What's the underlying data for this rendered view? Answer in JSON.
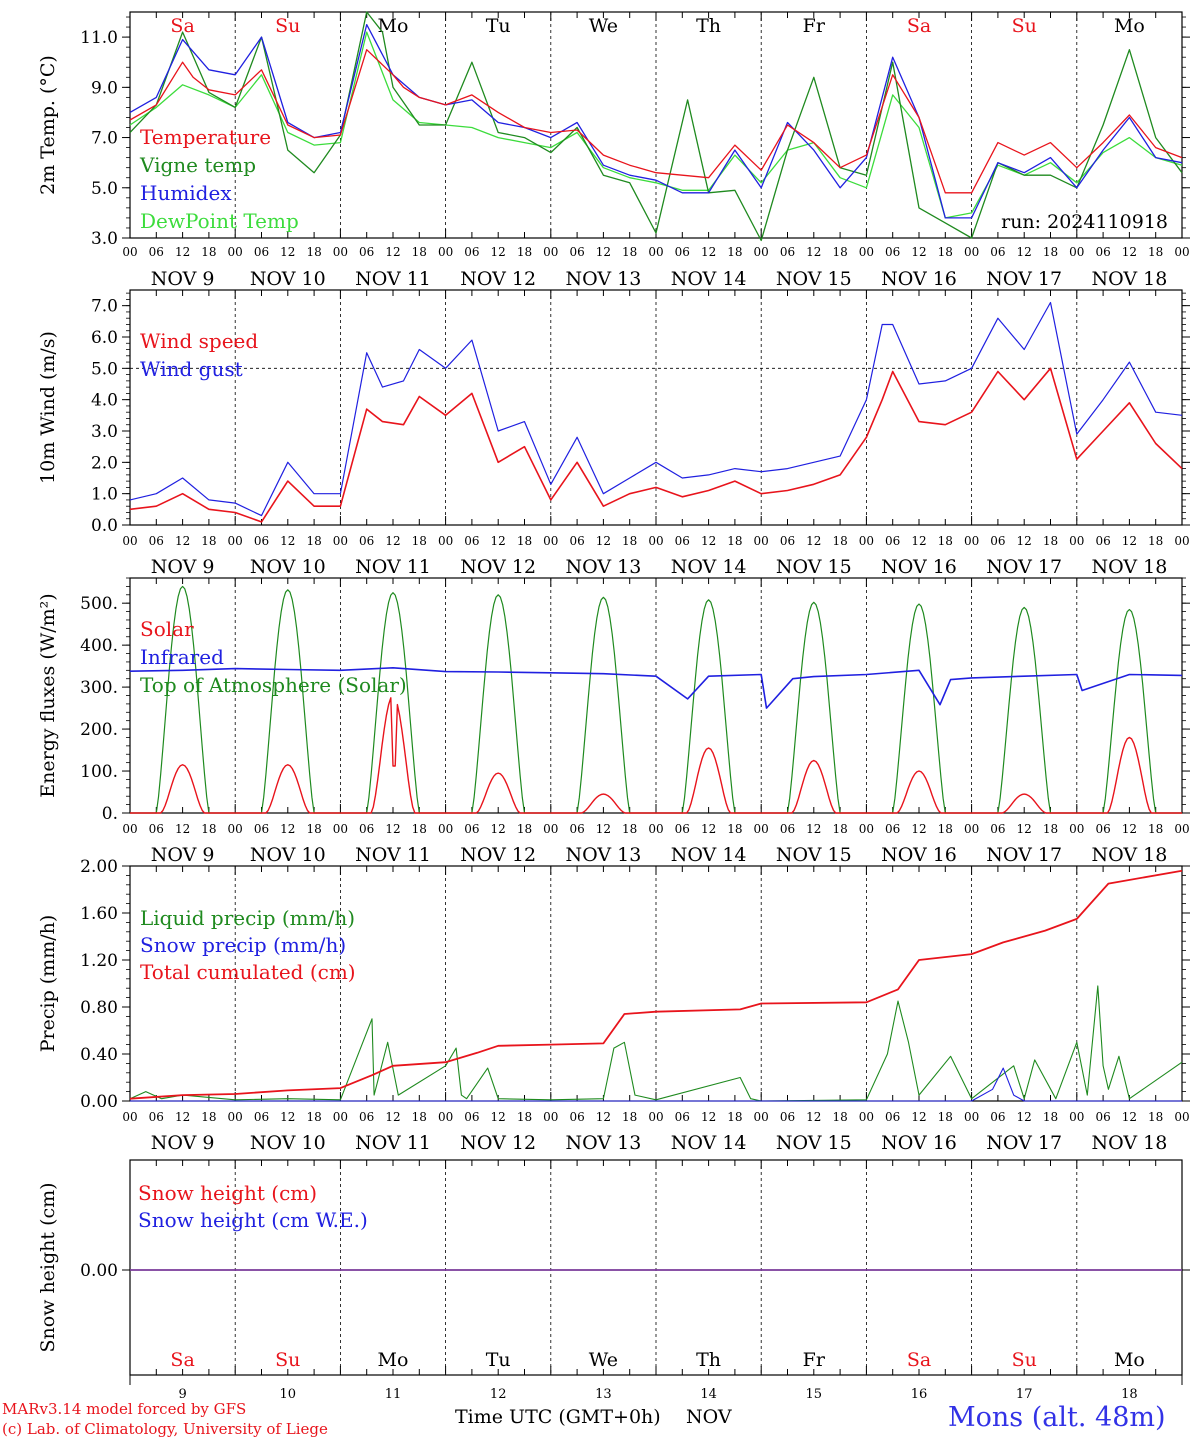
{
  "colors": {
    "red": "#e8141c",
    "darkgreen": "#1f8a1f",
    "blue": "#2020e0",
    "lightgreen": "#3cdc3c",
    "purple": "#7a3a9a",
    "grid": "#333333"
  },
  "x_axis": {
    "hours": [
      "00",
      "06",
      "12",
      "18"
    ],
    "last_hour": "00",
    "dates": [
      "NOV  9",
      "NOV 10",
      "NOV 11",
      "NOV 12",
      "NOV 13",
      "NOV 14",
      "NOV 15",
      "NOV 16",
      "NOV 17",
      "NOV 18"
    ],
    "day_names": [
      "Sa",
      "Su",
      "Mo",
      "Tu",
      "We",
      "Th",
      "Fr",
      "Sa",
      "Su",
      "Mo"
    ],
    "weekend": [
      true,
      true,
      false,
      false,
      false,
      false,
      false,
      true,
      true,
      false
    ],
    "day_numbers": [
      "9",
      "10",
      "11",
      "12",
      "13",
      "14",
      "15",
      "16",
      "17",
      "18"
    ],
    "title": "Time UTC (GMT+0h)",
    "month": "NOV"
  },
  "footer": {
    "credit1": "MARv3.14 model forced by GFS",
    "credit2": "(c) Lab. of Climatology, University of Liege",
    "station": "Mons (alt. 48m)"
  },
  "chart_data": [
    {
      "type": "line",
      "ylabel": "2m Temp. (°C)",
      "ylim": [
        3.0,
        12.0
      ],
      "yticks": [
        "3.0",
        "5.0",
        "7.0",
        "9.0",
        "11.0"
      ],
      "annotation": "run: 2024110918",
      "x_unit": "day index (0 = NOV 9 00 UTC)",
      "series": [
        {
          "name": "Temperature",
          "color": "red",
          "x": [
            0,
            0.25,
            0.5,
            0.6,
            0.75,
            1,
            1.25,
            1.5,
            1.75,
            2,
            2.25,
            2.5,
            2.6,
            2.75,
            3,
            3.25,
            3.5,
            3.75,
            4,
            4.25,
            4.5,
            4.75,
            5,
            5.25,
            5.5,
            5.75,
            6,
            6.25,
            6.5,
            6.75,
            7,
            7.25,
            7.5,
            7.75,
            8,
            8.25,
            8.5,
            8.75,
            9,
            9.25,
            9.5,
            9.75,
            10
          ],
          "values": [
            7.7,
            8.3,
            10.0,
            9.4,
            8.9,
            8.7,
            9.7,
            7.5,
            7.0,
            7.1,
            10.5,
            9.5,
            9.0,
            8.6,
            8.3,
            8.7,
            8.0,
            7.4,
            7.2,
            7.3,
            6.3,
            5.9,
            5.6,
            5.5,
            5.4,
            6.7,
            5.7,
            7.5,
            6.8,
            5.8,
            6.3,
            9.5,
            7.8,
            4.8,
            4.8,
            6.8,
            6.3,
            6.8,
            5.8,
            6.8,
            7.9,
            6.6,
            6.2
          ]
        },
        {
          "name": "Vigne temp",
          "color": "darkgreen",
          "x": [
            0,
            0.25,
            0.5,
            0.75,
            1,
            1.25,
            1.5,
            1.75,
            2,
            2.25,
            2.4,
            2.5,
            2.75,
            3,
            3.25,
            3.5,
            3.75,
            4,
            4.25,
            4.5,
            4.75,
            5,
            5.3,
            5.5,
            5.75,
            6,
            6.25,
            6.5,
            6.75,
            7,
            7.25,
            7.5,
            7.75,
            8,
            8.25,
            8.5,
            8.75,
            9,
            9.25,
            9.5,
            9.75,
            10
          ],
          "values": [
            7.2,
            8.3,
            11.2,
            8.8,
            8.2,
            11.0,
            6.5,
            5.6,
            7.1,
            12.0,
            11.2,
            9.0,
            7.5,
            7.5,
            10.0,
            7.2,
            7.0,
            6.4,
            7.4,
            5.5,
            5.2,
            3.2,
            8.5,
            4.8,
            4.9,
            2.9,
            6.5,
            9.4,
            5.8,
            5.5,
            10.0,
            4.2,
            3.6,
            3.0,
            6.0,
            5.5,
            5.5,
            5.0,
            7.5,
            10.5,
            7.0,
            5.6
          ]
        },
        {
          "name": "Humidex",
          "color": "blue",
          "x": [
            0,
            0.25,
            0.5,
            0.75,
            1,
            1.25,
            1.5,
            1.75,
            2,
            2.25,
            2.5,
            2.75,
            3,
            3.25,
            3.5,
            3.75,
            4,
            4.25,
            4.5,
            4.75,
            5,
            5.25,
            5.5,
            5.75,
            6,
            6.25,
            6.5,
            6.75,
            7,
            7.25,
            7.5,
            7.75,
            8,
            8.25,
            8.5,
            8.75,
            9,
            9.25,
            9.5,
            9.75,
            10
          ],
          "values": [
            8.0,
            8.6,
            10.9,
            9.7,
            9.5,
            11.0,
            7.6,
            7.0,
            7.2,
            11.5,
            9.5,
            8.6,
            8.3,
            8.5,
            7.6,
            7.4,
            7.0,
            7.6,
            5.9,
            5.5,
            5.3,
            4.8,
            4.8,
            6.5,
            5.0,
            7.6,
            6.5,
            5.0,
            6.2,
            10.2,
            7.8,
            3.8,
            3.8,
            6.0,
            5.6,
            6.2,
            5.0,
            6.5,
            7.8,
            6.2,
            6.0
          ]
        },
        {
          "name": "DewPoint Temp",
          "color": "lightgreen",
          "x": [
            0,
            0.25,
            0.5,
            0.75,
            1,
            1.25,
            1.5,
            1.75,
            2,
            2.25,
            2.5,
            2.75,
            3,
            3.25,
            3.5,
            3.75,
            4,
            4.25,
            4.5,
            4.75,
            5,
            5.25,
            5.5,
            5.75,
            6,
            6.25,
            6.5,
            6.75,
            7,
            7.25,
            7.5,
            7.75,
            8,
            8.25,
            8.5,
            8.75,
            9,
            9.25,
            9.5,
            9.75,
            10
          ],
          "values": [
            7.5,
            8.2,
            9.1,
            8.7,
            8.2,
            9.5,
            7.2,
            6.7,
            6.8,
            11.2,
            8.5,
            7.6,
            7.5,
            7.4,
            7.0,
            6.8,
            6.6,
            7.2,
            5.8,
            5.4,
            5.2,
            4.9,
            4.9,
            6.3,
            5.2,
            6.5,
            6.8,
            5.4,
            5.0,
            8.7,
            7.4,
            3.8,
            4.0,
            5.9,
            5.5,
            6.0,
            5.2,
            6.4,
            7.0,
            6.2,
            5.9
          ]
        }
      ]
    },
    {
      "type": "line",
      "ylabel": "10m Wind (m/s)",
      "ylim": [
        0.0,
        7.5
      ],
      "yticks": [
        "0.0",
        "1.0",
        "2.0",
        "3.0",
        "4.0",
        "5.0",
        "6.0",
        "7.0"
      ],
      "reference_line": 5.0,
      "series": [
        {
          "name": "Wind speed",
          "color": "red",
          "x": [
            0,
            0.25,
            0.5,
            0.75,
            1,
            1.25,
            1.5,
            1.75,
            2,
            2.25,
            2.4,
            2.6,
            2.75,
            3,
            3.25,
            3.5,
            3.75,
            4,
            4.25,
            4.5,
            4.75,
            5,
            5.25,
            5.5,
            5.75,
            6,
            6.25,
            6.5,
            6.75,
            7,
            7.15,
            7.25,
            7.5,
            7.75,
            8,
            8.25,
            8.5,
            8.75,
            9,
            9.25,
            9.5,
            9.75,
            10
          ],
          "values": [
            0.5,
            0.6,
            1.0,
            0.5,
            0.4,
            0.1,
            1.4,
            0.6,
            0.6,
            3.7,
            3.3,
            3.2,
            4.1,
            3.5,
            4.2,
            2.0,
            2.5,
            0.8,
            2.0,
            0.6,
            1.0,
            1.2,
            0.9,
            1.1,
            1.4,
            1.0,
            1.1,
            1.3,
            1.6,
            2.8,
            4.0,
            4.9,
            3.3,
            3.2,
            3.6,
            4.9,
            4.0,
            5.0,
            2.1,
            3.0,
            3.9,
            2.6,
            1.8
          ]
        },
        {
          "name": "Wind gust",
          "color": "blue",
          "x": [
            0,
            0.25,
            0.5,
            0.75,
            1,
            1.25,
            1.5,
            1.75,
            2,
            2.25,
            2.4,
            2.6,
            2.75,
            3,
            3.25,
            3.5,
            3.75,
            4,
            4.25,
            4.5,
            4.75,
            5,
            5.25,
            5.5,
            5.75,
            6,
            6.25,
            6.5,
            6.75,
            7,
            7.15,
            7.25,
            7.5,
            7.75,
            8,
            8.25,
            8.5,
            8.75,
            9,
            9.25,
            9.5,
            9.75,
            10
          ],
          "values": [
            0.8,
            1.0,
            1.5,
            0.8,
            0.7,
            0.3,
            2.0,
            1.0,
            1.0,
            5.5,
            4.4,
            4.6,
            5.6,
            5.0,
            5.9,
            3.0,
            3.3,
            1.3,
            2.8,
            1.0,
            1.5,
            2.0,
            1.5,
            1.6,
            1.8,
            1.7,
            1.8,
            2.0,
            2.2,
            4.0,
            6.4,
            6.4,
            4.5,
            4.6,
            5.0,
            6.6,
            5.6,
            7.1,
            2.9,
            4.0,
            5.2,
            3.6,
            3.5
          ]
        }
      ]
    },
    {
      "type": "line",
      "ylabel": "Energy fluxes (W/m²)",
      "ylim": [
        0,
        560
      ],
      "yticks": [
        "0.",
        "100.",
        "200.",
        "300.",
        "400.",
        "500."
      ],
      "toa_peaks": [
        540,
        532,
        525,
        520,
        514,
        508,
        502,
        498,
        490,
        485
      ],
      "solar_peaks": [
        115,
        115,
        280,
        95,
        45,
        155,
        125,
        100,
        45,
        180
      ],
      "series": [
        {
          "name": "Solar",
          "color": "red"
        },
        {
          "name": "Infrared",
          "color": "blue",
          "x": [
            0,
            0.5,
            1,
            1.5,
            2,
            2.5,
            3,
            3.5,
            4,
            4.5,
            5,
            5.3,
            5.5,
            6,
            6.05,
            6.3,
            6.5,
            7,
            7.5,
            7.7,
            7.8,
            8,
            8.5,
            9,
            9.05,
            9.5,
            10
          ],
          "values": [
            338,
            340,
            344,
            342,
            340,
            346,
            337,
            336,
            334,
            332,
            326,
            272,
            326,
            330,
            250,
            320,
            325,
            330,
            340,
            258,
            318,
            322,
            326,
            330,
            292,
            330,
            328
          ]
        },
        {
          "name": "Top of Atmosphere (Solar)",
          "color": "darkgreen"
        }
      ]
    },
    {
      "type": "line",
      "ylabel": "Precip (mm/h)",
      "ylim": [
        0.0,
        2.0
      ],
      "yticks": [
        "0.00",
        "0.40",
        "0.80",
        "1.20",
        "1.60",
        "2.00"
      ],
      "series": [
        {
          "name": "Liquid precip (mm/h)",
          "color": "darkgreen",
          "x": [
            0,
            0.15,
            0.3,
            0.5,
            1,
            1.5,
            2,
            2.3,
            2.32,
            2.45,
            2.55,
            3,
            3.1,
            3.15,
            3.2,
            3.4,
            3.5,
            4,
            4.5,
            4.6,
            4.7,
            4.8,
            5,
            5.8,
            5.9,
            6,
            7,
            7.2,
            7.3,
            7.4,
            7.5,
            7.8,
            8,
            8.4,
            8.5,
            8.6,
            8.8,
            9,
            9.1,
            9.2,
            9.25,
            9.3,
            9.4,
            9.5,
            10
          ],
          "values": [
            0.02,
            0.08,
            0.02,
            0.05,
            0.01,
            0.02,
            0.01,
            0.7,
            0.05,
            0.5,
            0.05,
            0.3,
            0.45,
            0.05,
            0.02,
            0.28,
            0.02,
            0.01,
            0.02,
            0.45,
            0.5,
            0.05,
            0.01,
            0.2,
            0.02,
            0.0,
            0.01,
            0.4,
            0.85,
            0.5,
            0.05,
            0.38,
            0.02,
            0.3,
            0.02,
            0.35,
            0.02,
            0.5,
            0.05,
            0.98,
            0.3,
            0.1,
            0.38,
            0.02,
            0.33
          ]
        },
        {
          "name": "Snow precip (mm/h)",
          "color": "blue",
          "x": [
            0,
            8.0,
            8.2,
            8.3,
            8.4,
            8.5,
            10
          ],
          "values": [
            0,
            0,
            0.1,
            0.28,
            0.05,
            0,
            0
          ]
        },
        {
          "name": "Total cumulated (cm)",
          "color": "red",
          "x": [
            0,
            0.5,
            1,
            1.5,
            2,
            2.3,
            2.5,
            3,
            3.3,
            3.5,
            4,
            4.5,
            4.7,
            5,
            5.8,
            6,
            7,
            7.3,
            7.5,
            8,
            8.3,
            8.7,
            9,
            9.3,
            10
          ],
          "values": [
            0.02,
            0.05,
            0.06,
            0.09,
            0.11,
            0.22,
            0.3,
            0.33,
            0.41,
            0.47,
            0.48,
            0.49,
            0.74,
            0.76,
            0.78,
            0.83,
            0.84,
            0.95,
            1.2,
            1.25,
            1.35,
            1.45,
            1.55,
            1.85,
            1.96
          ]
        }
      ]
    },
    {
      "type": "line",
      "ylabel": "Snow height (cm)",
      "yticks": [
        "0.00"
      ],
      "series": [
        {
          "name": "Snow height (cm)",
          "color": "red",
          "values": [
            0,
            0
          ]
        },
        {
          "name": "Snow height (cm W.E.)",
          "color": "blue",
          "values": [
            0,
            0
          ]
        }
      ]
    }
  ]
}
